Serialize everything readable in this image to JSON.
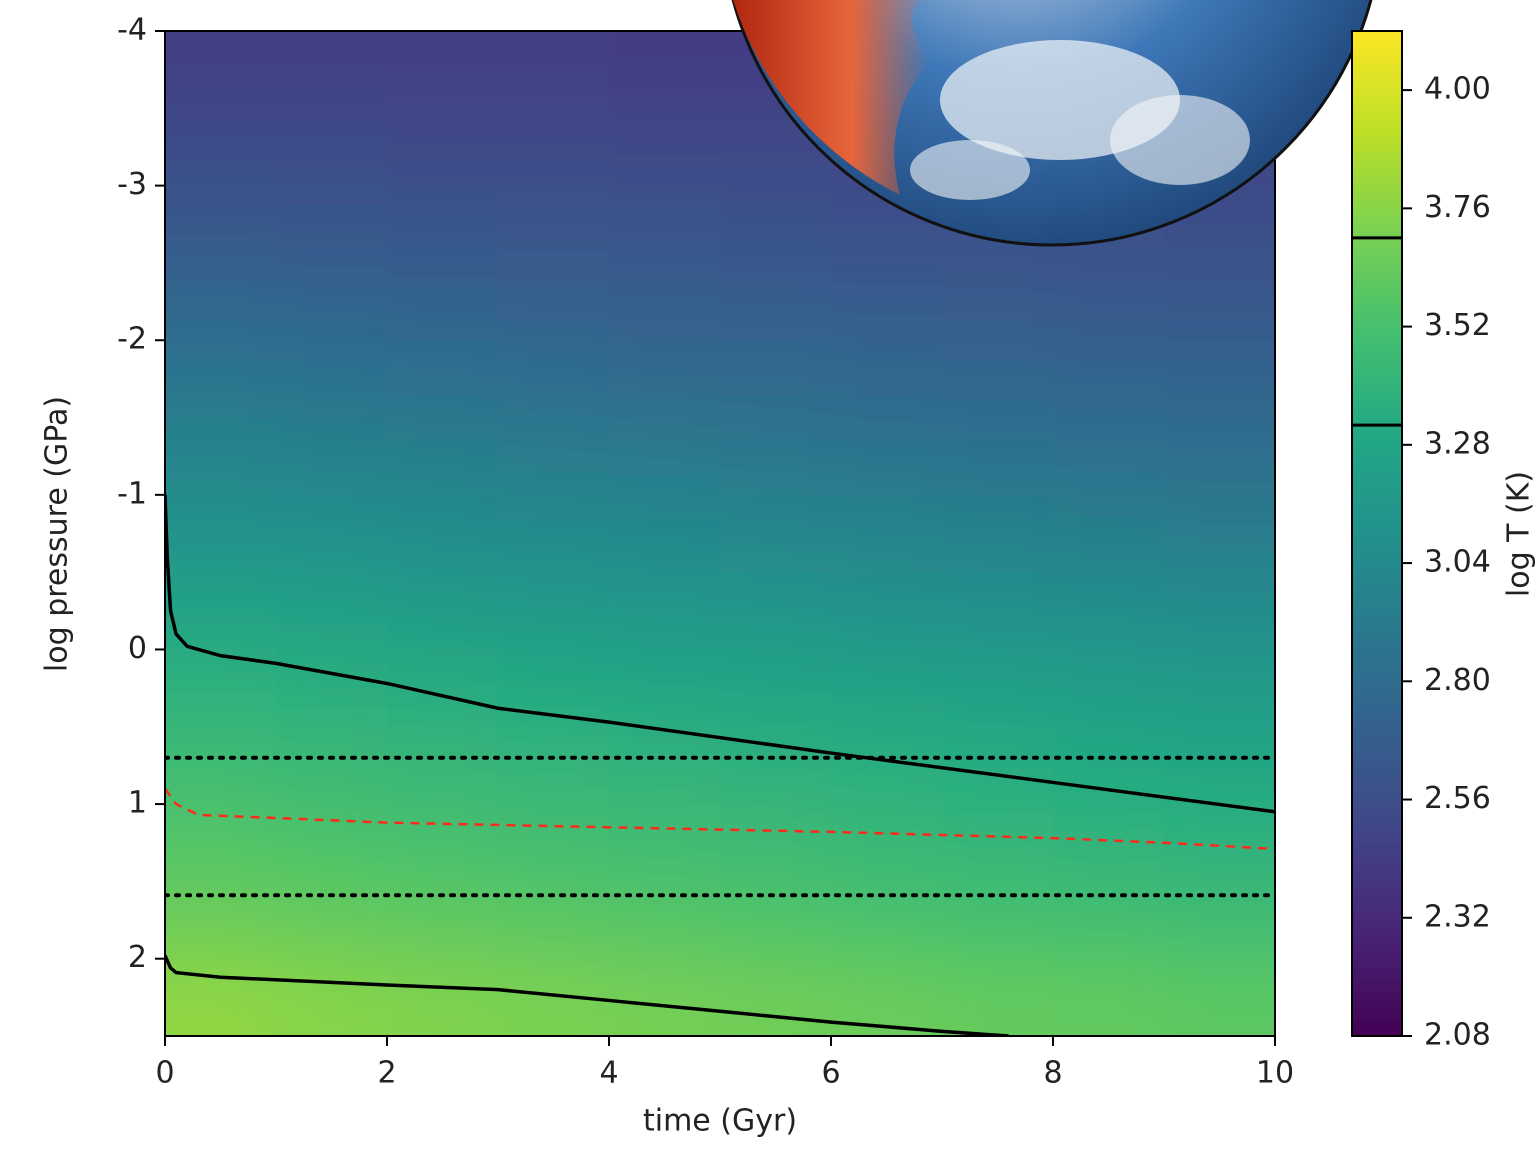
{
  "chart_data": {
    "type": "heatmap",
    "x_label": "time (Gyr)",
    "y_label": "log pressure (GPa)",
    "xlim": [
      0,
      10
    ],
    "ylim": [
      -4,
      2.5
    ],
    "y_inverted": true,
    "xticks": [
      0,
      2,
      4,
      6,
      8,
      10
    ],
    "yticks": [
      -4,
      -3,
      -2,
      -1,
      0,
      1,
      2
    ],
    "x": [
      0.5,
      1.5,
      2.5,
      3.5,
      4.5,
      5.5,
      6.5,
      7.5,
      8.5,
      9.5
    ],
    "y": [
      -3.75,
      -3.25,
      -2.75,
      -2.25,
      -1.75,
      -1.25,
      -0.75,
      -0.25,
      0.25,
      0.75,
      1.25,
      1.75,
      2.25
    ],
    "z": [
      [
        2.47,
        2.46,
        2.46,
        2.46,
        2.45,
        2.45,
        2.45,
        2.44,
        2.44,
        2.44
      ],
      [
        2.55,
        2.54,
        2.53,
        2.53,
        2.52,
        2.52,
        2.51,
        2.51,
        2.5,
        2.5
      ],
      [
        2.64,
        2.63,
        2.62,
        2.61,
        2.6,
        2.59,
        2.58,
        2.58,
        2.57,
        2.56
      ],
      [
        2.75,
        2.73,
        2.72,
        2.7,
        2.69,
        2.68,
        2.67,
        2.66,
        2.65,
        2.64
      ],
      [
        2.87,
        2.85,
        2.83,
        2.81,
        2.79,
        2.78,
        2.76,
        2.75,
        2.74,
        2.73
      ],
      [
        2.99,
        2.97,
        2.95,
        2.93,
        2.91,
        2.89,
        2.87,
        2.85,
        2.84,
        2.83
      ],
      [
        3.12,
        3.1,
        3.07,
        3.05,
        3.03,
        3.01,
        2.99,
        2.97,
        2.95,
        2.93
      ],
      [
        3.26,
        3.23,
        3.2,
        3.18,
        3.16,
        3.14,
        3.12,
        3.1,
        3.08,
        3.06
      ],
      [
        3.38,
        3.35,
        3.33,
        3.31,
        3.29,
        3.27,
        3.25,
        3.23,
        3.21,
        3.19
      ],
      [
        3.47,
        3.45,
        3.43,
        3.41,
        3.39,
        3.37,
        3.35,
        3.33,
        3.31,
        3.29
      ],
      [
        3.56,
        3.54,
        3.52,
        3.5,
        3.48,
        3.46,
        3.44,
        3.42,
        3.4,
        3.38
      ],
      [
        3.65,
        3.63,
        3.61,
        3.59,
        3.57,
        3.55,
        3.53,
        3.51,
        3.5,
        3.48
      ],
      [
        3.78,
        3.75,
        3.73,
        3.71,
        3.69,
        3.67,
        3.65,
        3.63,
        3.62,
        3.6
      ]
    ],
    "colormap": "viridis",
    "colorbar": {
      "label": "log T (K)",
      "clim": [
        2.08,
        4.12
      ],
      "ticks": [
        {
          "value": 2.08,
          "label": "2.08"
        },
        {
          "value": 2.32,
          "label": "2.32"
        },
        {
          "value": 2.56,
          "label": "2.56"
        },
        {
          "value": 2.8,
          "label": "2.80"
        },
        {
          "value": 3.04,
          "label": "3.04"
        },
        {
          "value": 3.28,
          "label": "3.28"
        },
        {
          "value": 3.52,
          "label": "3.52"
        },
        {
          "value": 3.76,
          "label": "3.76"
        },
        {
          "value": 4.0,
          "label": "4.00"
        }
      ],
      "levels": [
        3.32,
        3.7
      ],
      "level_color": "#000000"
    },
    "series": [
      {
        "color": "#000000",
        "style": "solid",
        "x": [
          0,
          0.02,
          0.05,
          0.1,
          0.2,
          0.3,
          0.5,
          1,
          2,
          3,
          4,
          6,
          8,
          10
        ],
        "values": [
          -1.0,
          -0.6,
          -0.25,
          -0.1,
          -0.02,
          0.0,
          0.04,
          0.09,
          0.22,
          0.38,
          0.47,
          0.67,
          0.86,
          1.05
        ]
      },
      {
        "color": "#000000",
        "style": "solid",
        "x": [
          0,
          0.05,
          0.1,
          0.5,
          2,
          3,
          4,
          5,
          6,
          7,
          7.6
        ],
        "values": [
          1.98,
          2.06,
          2.09,
          2.12,
          2.17,
          2.2,
          2.27,
          2.34,
          2.41,
          2.47,
          2.5
        ]
      },
      {
        "color": "#ff2a1a",
        "style": "dashed",
        "x": [
          0,
          0.1,
          0.3,
          1,
          2,
          4,
          6,
          8,
          9,
          10
        ],
        "values": [
          0.9,
          1.0,
          1.07,
          1.09,
          1.12,
          1.15,
          1.18,
          1.22,
          1.25,
          1.29
        ]
      }
    ],
    "hlines": [
      {
        "value": 0.7,
        "color": "#000000",
        "style": "dotted"
      },
      {
        "value": 1.59,
        "color": "#000000",
        "style": "dotted"
      }
    ]
  }
}
